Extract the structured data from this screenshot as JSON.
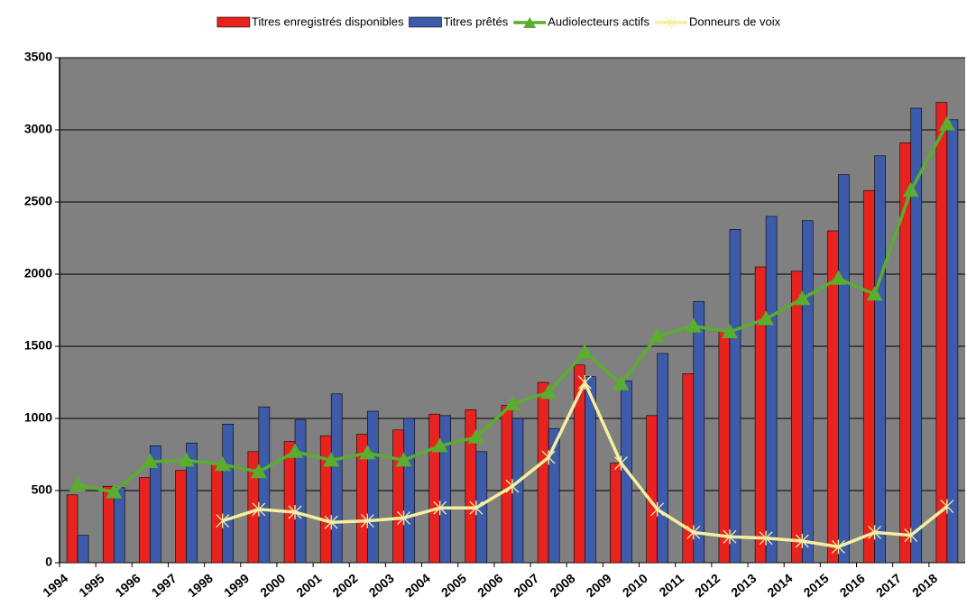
{
  "chart_data": {
    "type": "bar-line",
    "categories": [
      "1994",
      "1995",
      "1996",
      "1997",
      "1998",
      "1999",
      "2000",
      "2001",
      "2002",
      "2003",
      "2004",
      "2005",
      "2006",
      "2007",
      "2008",
      "2009",
      "2010",
      "2011",
      "2012",
      "2013",
      "2014",
      "2015",
      "2016",
      "2017",
      "2018"
    ],
    "series": [
      {
        "name": "Titres enregistrés disponibles",
        "type": "bar",
        "color": "#e8231f",
        "values": [
          470,
          530,
          590,
          640,
          680,
          770,
          840,
          880,
          890,
          920,
          1030,
          1060,
          1090,
          1250,
          1370,
          690,
          1020,
          1310,
          1610,
          2050,
          2020,
          2300,
          2580,
          2910,
          3190
        ]
      },
      {
        "name": "Titres prêtés",
        "type": "bar",
        "color": "#3d5ba8",
        "values": [
          190,
          520,
          810,
          830,
          960,
          1080,
          990,
          1170,
          1050,
          1000,
          1020,
          770,
          1000,
          930,
          1290,
          1260,
          1450,
          1810,
          2310,
          2400,
          2370,
          2690,
          2820,
          3150,
          3070
        ]
      },
      {
        "name": "Audiolecteurs actifs",
        "type": "line",
        "marker": "triangle",
        "color": "#5aad2d",
        "values": [
          540,
          490,
          700,
          710,
          680,
          630,
          770,
          710,
          760,
          710,
          810,
          870,
          1100,
          1180,
          1460,
          1240,
          1570,
          1640,
          1600,
          1690,
          1830,
          1970,
          1860,
          2580,
          3040
        ]
      },
      {
        "name": "Donneurs de voix",
        "type": "line",
        "marker": "star",
        "color": "#f6efa0",
        "values": [
          null,
          null,
          null,
          null,
          290,
          370,
          350,
          280,
          290,
          310,
          380,
          380,
          530,
          730,
          1250,
          690,
          370,
          210,
          180,
          170,
          150,
          110,
          210,
          190,
          390
        ]
      }
    ],
    "ylim": [
      0,
      3500
    ],
    "yticks": [
      0,
      500,
      1000,
      1500,
      2000,
      2500,
      3000,
      3500
    ],
    "grid": true,
    "legend": "top"
  }
}
